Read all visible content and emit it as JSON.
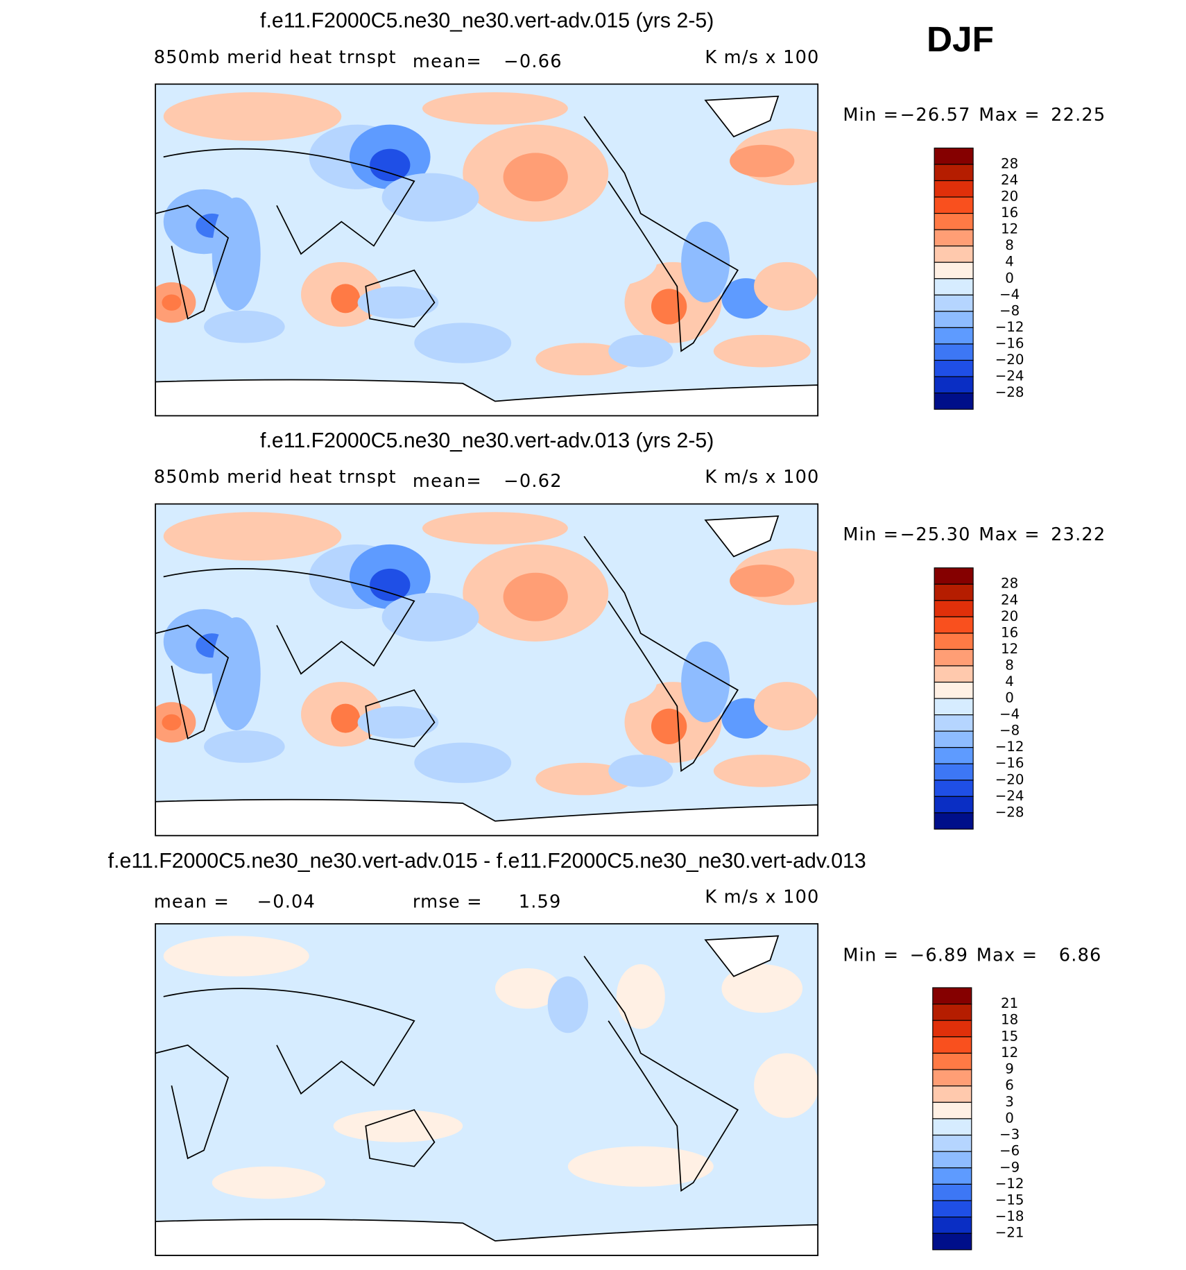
{
  "label": "DJF",
  "colors": [
    "#850000",
    "#b51d00",
    "#e0300a",
    "#f9501e",
    "#ff7a45",
    "#ff9e75",
    "#ffc9ad",
    "#fff0e4",
    "#d6ecff",
    "#b5d5ff",
    "#8ebcff",
    "#5e9bff",
    "#3d77f5",
    "#1f4fe6",
    "#0a2ec4",
    "#000f8a"
  ],
  "panels": [
    {
      "title": "f.e11.F2000C5.ne30_ne30.vert-adv.015 (yrs 2-5)",
      "variable": "850mb merid heat trnspt",
      "mean_label": "mean=",
      "mean": "−0.66",
      "units": "K m/s x 100",
      "min_label": "Min =",
      "min": "−26.57",
      "max_label": "Max =",
      "max": "22.25",
      "levels": [
        "28",
        "24",
        "20",
        "16",
        "12",
        "8",
        "4",
        "0",
        "−4",
        "−8",
        "−12",
        "−16",
        "−20",
        "−24",
        "−28"
      ]
    },
    {
      "title": "f.e11.F2000C5.ne30_ne30.vert-adv.013 (yrs 2-5)",
      "variable": "850mb merid heat trnspt",
      "mean_label": "mean=",
      "mean": "−0.62",
      "units": "K m/s x 100",
      "min_label": "Min =",
      "min": "−25.30",
      "max_label": "Max =",
      "max": "23.22",
      "levels": [
        "28",
        "24",
        "20",
        "16",
        "12",
        "8",
        "4",
        "0",
        "−4",
        "−8",
        "−12",
        "−16",
        "−20",
        "−24",
        "−28"
      ]
    },
    {
      "title": "f.e11.F2000C5.ne30_ne30.vert-adv.015 - f.e11.F2000C5.ne30_ne30.vert-adv.013",
      "mean_label": "mean =",
      "mean": "−0.04",
      "rmse_label": "rmse =",
      "rmse": "1.59",
      "units": "K m/s x 100",
      "min_label": "Min =",
      "min": "−6.89",
      "max_label": "Max =",
      "max": "6.86",
      "levels": [
        "21",
        "18",
        "15",
        "12",
        "9",
        "6",
        "3",
        "0",
        "−3",
        "−6",
        "−9",
        "−12",
        "−15",
        "−18",
        "−21"
      ]
    }
  ]
}
